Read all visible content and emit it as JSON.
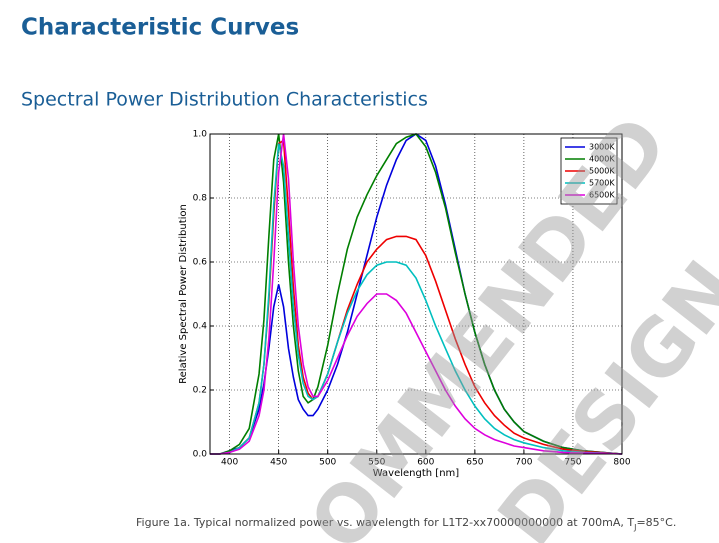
{
  "header": {
    "title": "Characteristic Curves",
    "subtitle": "Spectral Power Distribution Characteristics"
  },
  "watermark": [
    "OMMENDED",
    "DESIGN"
  ],
  "caption": {
    "text": "Figure 1a. Typical normalized power vs. wavelength for L1T2-xx70000000000 at 700mA, T",
    "subscript": "J",
    "suffix": "=85°C."
  },
  "chart_data": {
    "type": "line",
    "xlabel": "Wavelength [nm]",
    "ylabel": "Relative Spectral Power Distribution",
    "xlim": [
      380,
      800
    ],
    "ylim": [
      0,
      1
    ],
    "xticks": [
      400,
      450,
      500,
      550,
      600,
      650,
      700,
      750,
      800
    ],
    "yticks": [
      {
        "value": 0,
        "label": "0.0"
      },
      0.2,
      0.4,
      0.6,
      0.8,
      {
        "value": 1,
        "label": "1.0"
      }
    ],
    "grid": true,
    "legend": "upper-right",
    "x": [
      380,
      390,
      400,
      410,
      420,
      430,
      435,
      440,
      445,
      450,
      455,
      460,
      465,
      470,
      475,
      480,
      485,
      490,
      500,
      510,
      520,
      530,
      540,
      550,
      560,
      570,
      580,
      590,
      600,
      610,
      620,
      630,
      640,
      650,
      660,
      670,
      680,
      690,
      700,
      720,
      740,
      760,
      780,
      800
    ],
    "series": [
      {
        "name": "3000K",
        "color": "#0000dd",
        "values": [
          0,
          0,
          0.01,
          0.02,
          0.05,
          0.14,
          0.22,
          0.33,
          0.46,
          0.53,
          0.46,
          0.33,
          0.24,
          0.17,
          0.14,
          0.12,
          0.12,
          0.14,
          0.2,
          0.28,
          0.38,
          0.5,
          0.62,
          0.74,
          0.84,
          0.92,
          0.98,
          1.0,
          0.98,
          0.9,
          0.78,
          0.64,
          0.5,
          0.38,
          0.28,
          0.2,
          0.14,
          0.1,
          0.07,
          0.04,
          0.02,
          0.01,
          0.005,
          0
        ]
      },
      {
        "name": "4000K",
        "color": "#007f00",
        "values": [
          0,
          0,
          0.01,
          0.03,
          0.08,
          0.25,
          0.42,
          0.68,
          0.92,
          1.0,
          0.85,
          0.6,
          0.4,
          0.26,
          0.18,
          0.16,
          0.17,
          0.21,
          0.34,
          0.5,
          0.64,
          0.74,
          0.81,
          0.87,
          0.92,
          0.97,
          0.99,
          1.0,
          0.96,
          0.88,
          0.77,
          0.63,
          0.5,
          0.38,
          0.28,
          0.2,
          0.14,
          0.1,
          0.07,
          0.04,
          0.02,
          0.01,
          0.005,
          0
        ]
      },
      {
        "name": "5000K",
        "color": "#ee0000",
        "values": [
          0,
          0,
          0.005,
          0.02,
          0.05,
          0.16,
          0.28,
          0.48,
          0.75,
          0.97,
          0.98,
          0.76,
          0.52,
          0.34,
          0.24,
          0.19,
          0.17,
          0.18,
          0.25,
          0.35,
          0.45,
          0.53,
          0.6,
          0.64,
          0.67,
          0.68,
          0.68,
          0.67,
          0.62,
          0.54,
          0.45,
          0.36,
          0.28,
          0.21,
          0.16,
          0.12,
          0.09,
          0.065,
          0.05,
          0.03,
          0.015,
          0.008,
          0.004,
          0
        ]
      },
      {
        "name": "5700K",
        "color": "#00bfbf",
        "values": [
          0,
          0,
          0.005,
          0.02,
          0.05,
          0.16,
          0.28,
          0.5,
          0.78,
          0.97,
          0.9,
          0.68,
          0.46,
          0.31,
          0.22,
          0.18,
          0.17,
          0.18,
          0.25,
          0.35,
          0.44,
          0.51,
          0.56,
          0.59,
          0.6,
          0.6,
          0.59,
          0.55,
          0.48,
          0.4,
          0.33,
          0.26,
          0.2,
          0.15,
          0.11,
          0.08,
          0.06,
          0.045,
          0.035,
          0.02,
          0.01,
          0.005,
          0.003,
          0
        ]
      },
      {
        "name": "6500K",
        "color": "#dd00dd",
        "values": [
          0,
          0,
          0.005,
          0.015,
          0.04,
          0.12,
          0.2,
          0.36,
          0.6,
          0.88,
          1.0,
          0.86,
          0.6,
          0.4,
          0.28,
          0.21,
          0.18,
          0.18,
          0.23,
          0.3,
          0.37,
          0.43,
          0.47,
          0.5,
          0.5,
          0.48,
          0.44,
          0.38,
          0.32,
          0.26,
          0.2,
          0.15,
          0.11,
          0.08,
          0.06,
          0.045,
          0.035,
          0.025,
          0.02,
          0.01,
          0.005,
          0.003,
          0.002,
          0
        ]
      }
    ]
  }
}
